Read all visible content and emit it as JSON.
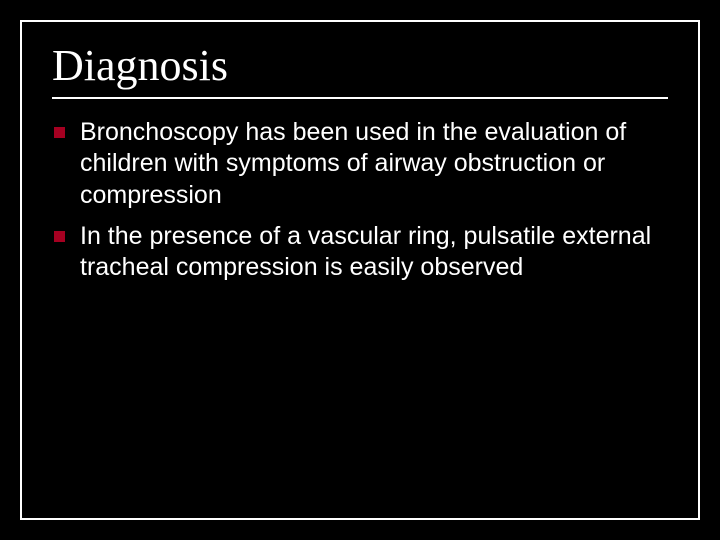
{
  "slide": {
    "title": "Diagnosis",
    "bullets": [
      "Bronchoscopy has been used in the evaluation of children with symptoms of airway obstruction or compression",
      "In the presence of a vascular ring, pulsatile external tracheal compression is easily observed"
    ],
    "style": {
      "background_color": "#000000",
      "border_color": "#ffffff",
      "title_font": "Times New Roman",
      "title_fontsize": 44,
      "title_color": "#ffffff",
      "body_font": "Arial",
      "body_fontsize": 25,
      "body_color": "#ffffff",
      "bullet_color": "#a50021",
      "bullet_size": 11,
      "rule_color": "#ffffff"
    }
  }
}
